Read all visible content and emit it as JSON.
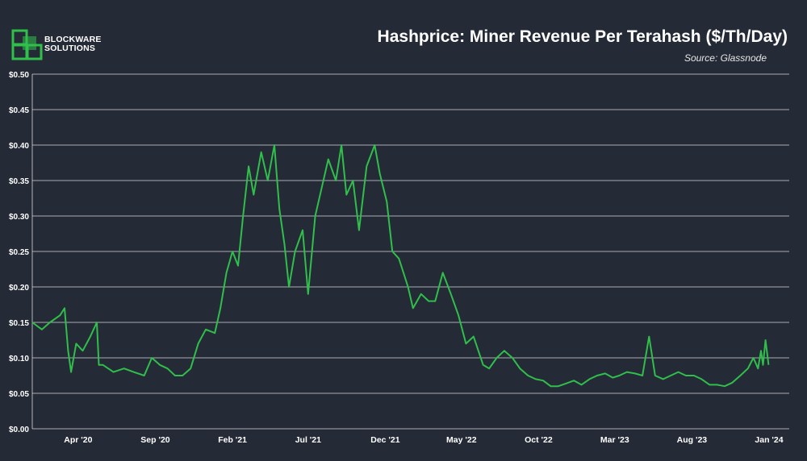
{
  "brand": {
    "name_line1": "BLOCKWARE",
    "name_line2": "SOLUTIONS",
    "color": "#2fbf4a"
  },
  "chart_data": {
    "type": "line",
    "title": "Hashprice: Miner Revenue Per Terahash ($/Th/Day)",
    "subtitle": "Source: Glassnode",
    "xlabel": "",
    "ylabel": "",
    "x_range": [
      "2020-01-01",
      "2024-02-10"
    ],
    "ylim": [
      0,
      0.5
    ],
    "y_ticks": [
      0,
      0.05,
      0.1,
      0.15,
      0.2,
      0.25,
      0.3,
      0.35,
      0.4,
      0.45,
      0.5
    ],
    "y_tick_labels": [
      "$0.00",
      "$0.05",
      "$0.10",
      "$0.15",
      "$0.20",
      "$0.25",
      "$0.30",
      "$0.35",
      "$0.40",
      "$0.45",
      "$0.50"
    ],
    "x_ticks": [
      "2020-04-01",
      "2020-09-01",
      "2021-02-01",
      "2021-07-01",
      "2021-12-01",
      "2022-05-01",
      "2022-10-01",
      "2023-03-01",
      "2023-08-01",
      "2024-01-01"
    ],
    "x_tick_labels": [
      "Apr '20",
      "Sep '20",
      "Feb '21",
      "Jul '21",
      "Dec '21",
      "May '22",
      "Oct '22",
      "Mar '23",
      "Aug '23",
      "Jan '24"
    ],
    "grid": true,
    "colors": {
      "line": "#2fbf4a",
      "grid": "#d9d9d9",
      "background": "#252a37",
      "text": "#ffffff"
    },
    "series": [
      {
        "x": [
          "2020-01-01",
          "2020-01-20",
          "2020-02-05",
          "2020-02-25",
          "2020-03-05",
          "2020-03-12",
          "2020-03-18",
          "2020-03-28",
          "2020-04-10",
          "2020-04-25",
          "2020-05-08",
          "2020-05-12",
          "2020-05-20",
          "2020-06-10",
          "2020-07-01",
          "2020-07-20",
          "2020-08-10",
          "2020-08-25",
          "2020-09-10",
          "2020-09-25",
          "2020-10-10",
          "2020-10-25",
          "2020-11-10",
          "2020-11-25",
          "2020-12-10",
          "2020-12-28",
          "2021-01-08",
          "2021-01-20",
          "2021-02-01",
          "2021-02-12",
          "2021-02-22",
          "2021-03-05",
          "2021-03-15",
          "2021-03-30",
          "2021-04-12",
          "2021-04-25",
          "2021-05-05",
          "2021-05-15",
          "2021-05-24",
          "2021-06-05",
          "2021-06-20",
          "2021-07-01",
          "2021-07-15",
          "2021-07-28",
          "2021-08-10",
          "2021-08-25",
          "2021-09-05",
          "2021-09-15",
          "2021-09-28",
          "2021-10-10",
          "2021-10-25",
          "2021-11-10",
          "2021-11-20",
          "2021-12-04",
          "2021-12-15",
          "2021-12-28",
          "2022-01-15",
          "2022-01-25",
          "2022-02-10",
          "2022-02-25",
          "2022-03-10",
          "2022-03-25",
          "2022-04-10",
          "2022-04-25",
          "2022-05-10",
          "2022-05-25",
          "2022-06-13",
          "2022-06-25",
          "2022-07-10",
          "2022-07-25",
          "2022-08-10",
          "2022-08-25",
          "2022-09-10",
          "2022-09-25",
          "2022-10-10",
          "2022-10-25",
          "2022-11-09",
          "2022-11-25",
          "2022-12-10",
          "2022-12-25",
          "2023-01-10",
          "2023-01-25",
          "2023-02-10",
          "2023-02-25",
          "2023-03-10",
          "2023-03-25",
          "2023-04-10",
          "2023-04-25",
          "2023-05-08",
          "2023-05-20",
          "2023-06-05",
          "2023-06-20",
          "2023-07-05",
          "2023-07-20",
          "2023-08-05",
          "2023-08-20",
          "2023-09-05",
          "2023-09-20",
          "2023-10-05",
          "2023-10-20",
          "2023-11-05",
          "2023-11-20",
          "2023-12-01",
          "2023-12-10",
          "2023-12-16",
          "2023-12-20",
          "2023-12-25",
          "2023-12-31"
        ],
        "y": [
          0.15,
          0.14,
          0.15,
          0.16,
          0.17,
          0.11,
          0.08,
          0.12,
          0.11,
          0.13,
          0.15,
          0.09,
          0.09,
          0.08,
          0.085,
          0.08,
          0.075,
          0.1,
          0.09,
          0.085,
          0.075,
          0.075,
          0.085,
          0.12,
          0.14,
          0.135,
          0.17,
          0.22,
          0.25,
          0.23,
          0.3,
          0.37,
          0.33,
          0.39,
          0.35,
          0.4,
          0.31,
          0.26,
          0.2,
          0.25,
          0.28,
          0.19,
          0.3,
          0.34,
          0.38,
          0.35,
          0.4,
          0.33,
          0.35,
          0.28,
          0.37,
          0.4,
          0.36,
          0.32,
          0.25,
          0.24,
          0.2,
          0.17,
          0.19,
          0.18,
          0.18,
          0.22,
          0.19,
          0.16,
          0.12,
          0.13,
          0.09,
          0.085,
          0.1,
          0.11,
          0.1,
          0.085,
          0.075,
          0.07,
          0.068,
          0.06,
          0.06,
          0.064,
          0.068,
          0.062,
          0.07,
          0.075,
          0.078,
          0.072,
          0.075,
          0.08,
          0.078,
          0.075,
          0.13,
          0.075,
          0.07,
          0.075,
          0.08,
          0.075,
          0.075,
          0.07,
          0.062,
          0.062,
          0.06,
          0.065,
          0.075,
          0.085,
          0.1,
          0.085,
          0.11,
          0.09,
          0.125,
          0.09
        ]
      }
    ]
  }
}
